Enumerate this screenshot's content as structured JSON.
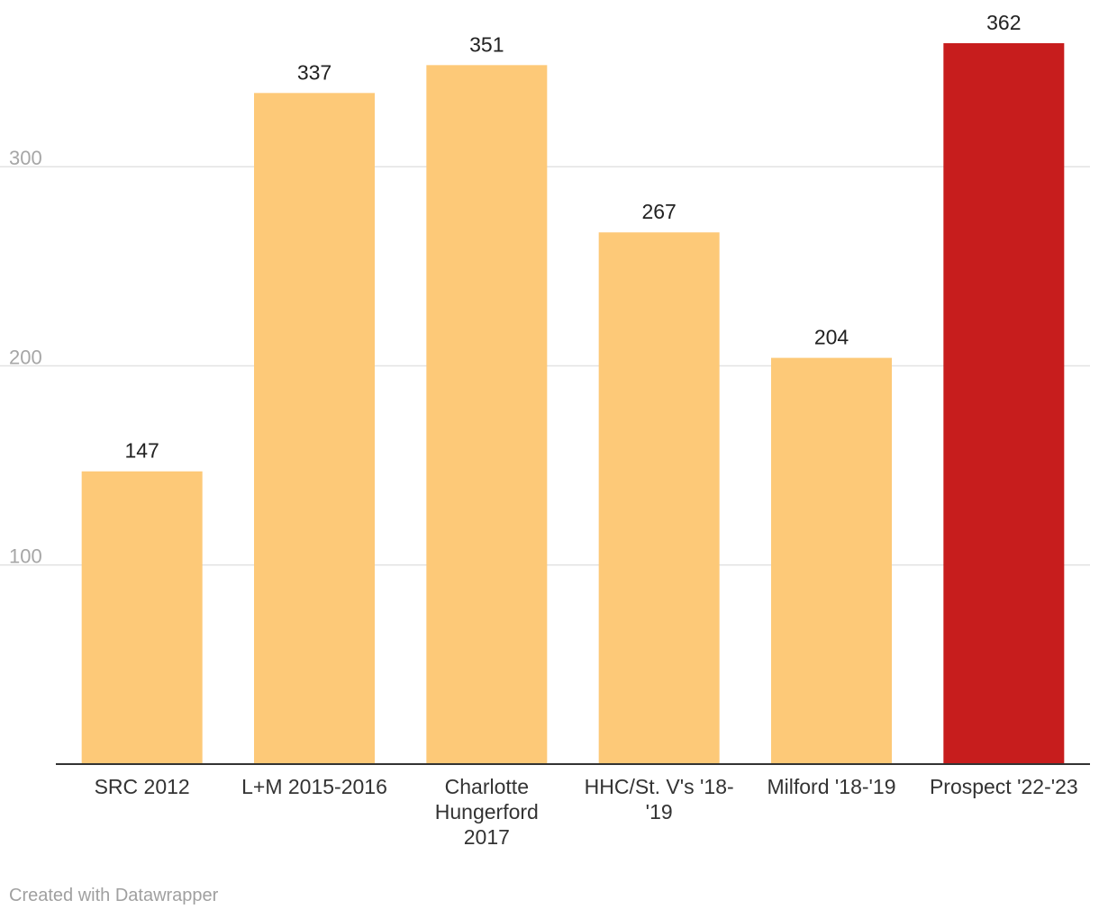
{
  "chart_data": {
    "type": "bar",
    "title": "",
    "xlabel": "",
    "ylabel": "",
    "categories": [
      [
        "SRC 2012"
      ],
      [
        "L+M 2015-2016"
      ],
      [
        "Charlotte",
        "Hungerford",
        "2017"
      ],
      [
        "HHC/St. V's '18-",
        "'19"
      ],
      [
        "Milford '18-'19"
      ],
      [
        "Prospect '22-'23"
      ]
    ],
    "values": [
      147,
      337,
      351,
      267,
      204,
      362
    ],
    "bar_colors": [
      "#fdc978",
      "#fdc978",
      "#fdc978",
      "#fdc978",
      "#fdc978",
      "#c71d1d"
    ],
    "ylim": [
      0,
      362
    ],
    "yticks": [
      100,
      200,
      300
    ],
    "grid": true,
    "legend": "none"
  },
  "colors": {
    "default_bar": "#fdc978",
    "highlight_bar": "#c71d1d",
    "gridline": "#e3e3e3",
    "axis": "#333333",
    "tick_text": "#a6a6a6"
  },
  "footer": {
    "credit": "Created with Datawrapper"
  }
}
